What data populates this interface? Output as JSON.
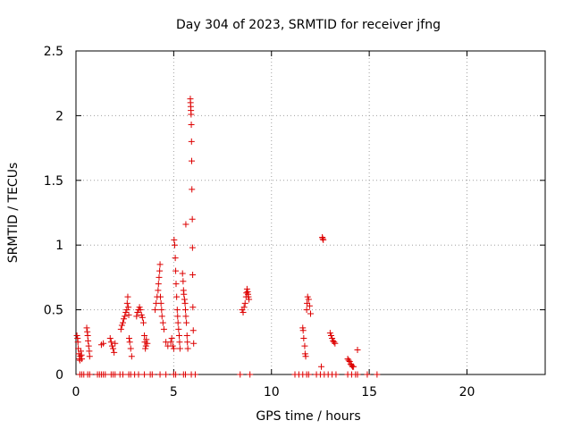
{
  "chart_data": {
    "type": "scatter",
    "title": "Day 304 of 2023, SRMTID for receiver jfng",
    "xlabel": "GPS time / hours",
    "ylabel": "SRMTID / TECUs",
    "xlim": [
      0,
      24
    ],
    "ylim": [
      0,
      2.5
    ],
    "xticks": [
      0,
      5,
      10,
      15,
      20
    ],
    "xtick_labels": [
      "0",
      "5",
      "10",
      "15",
      "20"
    ],
    "yticks": [
      0,
      0.5,
      1,
      1.5,
      2,
      2.5
    ],
    "ytick_labels": [
      "0",
      "0.5",
      "1",
      "1.5",
      "2",
      "2.5"
    ],
    "grid": true,
    "marker": "+",
    "color": "#dd0000",
    "series": [
      {
        "name": "SRMTID",
        "points": [
          [
            0.05,
            0.3
          ],
          [
            0.08,
            0.28
          ],
          [
            0.1,
            0.25
          ],
          [
            0.12,
            0.2
          ],
          [
            0.15,
            0.16
          ],
          [
            0.18,
            0.12
          ],
          [
            0.2,
            0.11
          ],
          [
            0.22,
            0.14
          ],
          [
            0.25,
            0.18
          ],
          [
            0.28,
            0.15
          ],
          [
            0.3,
            0.12
          ],
          [
            0.55,
            0.36
          ],
          [
            0.58,
            0.33
          ],
          [
            0.6,
            0.3
          ],
          [
            0.62,
            0.26
          ],
          [
            0.65,
            0.22
          ],
          [
            0.68,
            0.18
          ],
          [
            0.7,
            0.14
          ],
          [
            1.3,
            0.23
          ],
          [
            1.4,
            0.24
          ],
          [
            1.75,
            0.28
          ],
          [
            1.8,
            0.25
          ],
          [
            1.85,
            0.22
          ],
          [
            1.9,
            0.2
          ],
          [
            1.95,
            0.17
          ],
          [
            2.0,
            0.24
          ],
          [
            2.3,
            0.35
          ],
          [
            2.35,
            0.38
          ],
          [
            2.4,
            0.4
          ],
          [
            2.45,
            0.43
          ],
          [
            2.5,
            0.45
          ],
          [
            2.55,
            0.48
          ],
          [
            2.6,
            0.5
          ],
          [
            2.62,
            0.55
          ],
          [
            2.65,
            0.6
          ],
          [
            2.68,
            0.52
          ],
          [
            2.7,
            0.46
          ],
          [
            2.72,
            0.28
          ],
          [
            2.75,
            0.25
          ],
          [
            2.8,
            0.2
          ],
          [
            2.85,
            0.14
          ],
          [
            3.1,
            0.45
          ],
          [
            3.15,
            0.48
          ],
          [
            3.2,
            0.5
          ],
          [
            3.25,
            0.52
          ],
          [
            3.3,
            0.5
          ],
          [
            3.35,
            0.46
          ],
          [
            3.4,
            0.44
          ],
          [
            3.45,
            0.4
          ],
          [
            3.5,
            0.3
          ],
          [
            3.52,
            0.25
          ],
          [
            3.55,
            0.2
          ],
          [
            3.58,
            0.22
          ],
          [
            3.6,
            0.27
          ],
          [
            3.65,
            0.24
          ],
          [
            4.05,
            0.5
          ],
          [
            4.1,
            0.55
          ],
          [
            4.15,
            0.6
          ],
          [
            4.2,
            0.65
          ],
          [
            4.22,
            0.7
          ],
          [
            4.25,
            0.75
          ],
          [
            4.28,
            0.8
          ],
          [
            4.3,
            0.85
          ],
          [
            4.32,
            0.6
          ],
          [
            4.35,
            0.55
          ],
          [
            4.38,
            0.5
          ],
          [
            4.4,
            0.45
          ],
          [
            4.45,
            0.4
          ],
          [
            4.5,
            0.35
          ],
          [
            4.6,
            0.25
          ],
          [
            4.7,
            0.22
          ],
          [
            4.85,
            0.25
          ],
          [
            4.9,
            0.28
          ],
          [
            4.95,
            0.22
          ],
          [
            5.0,
            0.2
          ],
          [
            5.02,
            1.04
          ],
          [
            5.05,
            1.0
          ],
          [
            5.08,
            0.9
          ],
          [
            5.1,
            0.8
          ],
          [
            5.12,
            0.7
          ],
          [
            5.15,
            0.6
          ],
          [
            5.18,
            0.5
          ],
          [
            5.2,
            0.45
          ],
          [
            5.22,
            0.4
          ],
          [
            5.25,
            0.35
          ],
          [
            5.28,
            0.3
          ],
          [
            5.3,
            0.25
          ],
          [
            5.32,
            0.2
          ],
          [
            5.45,
            0.78
          ],
          [
            5.48,
            0.72
          ],
          [
            5.5,
            0.65
          ],
          [
            5.52,
            0.62
          ],
          [
            5.55,
            0.58
          ],
          [
            5.58,
            0.55
          ],
          [
            5.6,
            0.5
          ],
          [
            5.62,
            0.45
          ],
          [
            5.65,
            0.4
          ],
          [
            5.68,
            0.3
          ],
          [
            5.7,
            0.25
          ],
          [
            5.72,
            0.2
          ],
          [
            5.62,
            1.16
          ],
          [
            5.85,
            2.13
          ],
          [
            5.86,
            2.1
          ],
          [
            5.87,
            2.07
          ],
          [
            5.88,
            2.04
          ],
          [
            5.89,
            2.01
          ],
          [
            5.9,
            1.93
          ],
          [
            5.91,
            1.8
          ],
          [
            5.92,
            1.65
          ],
          [
            5.93,
            1.43
          ],
          [
            5.95,
            1.2
          ],
          [
            5.96,
            0.98
          ],
          [
            5.97,
            0.77
          ],
          [
            5.98,
            0.52
          ],
          [
            6.0,
            0.34
          ],
          [
            6.02,
            0.24
          ],
          [
            8.5,
            0.5
          ],
          [
            8.55,
            0.48
          ],
          [
            8.6,
            0.52
          ],
          [
            8.65,
            0.55
          ],
          [
            8.7,
            0.6
          ],
          [
            8.72,
            0.63
          ],
          [
            8.75,
            0.66
          ],
          [
            8.78,
            0.64
          ],
          [
            8.8,
            0.62
          ],
          [
            8.82,
            0.6
          ],
          [
            8.85,
            0.58
          ],
          [
            11.6,
            0.36
          ],
          [
            11.62,
            0.34
          ],
          [
            11.65,
            0.28
          ],
          [
            11.7,
            0.22
          ],
          [
            11.72,
            0.16
          ],
          [
            11.75,
            0.14
          ],
          [
            11.8,
            0.5
          ],
          [
            11.82,
            0.55
          ],
          [
            11.85,
            0.6
          ],
          [
            11.9,
            0.58
          ],
          [
            11.95,
            0.53
          ],
          [
            12.0,
            0.47
          ],
          [
            12.6,
            1.06
          ],
          [
            12.62,
            1.05
          ],
          [
            12.65,
            1.04
          ],
          [
            12.55,
            0.06
          ],
          [
            13.0,
            0.32
          ],
          [
            13.05,
            0.3
          ],
          [
            13.1,
            0.28
          ],
          [
            13.15,
            0.26
          ],
          [
            13.2,
            0.25
          ],
          [
            13.25,
            0.24
          ],
          [
            13.9,
            0.12
          ],
          [
            13.95,
            0.11
          ],
          [
            14.0,
            0.1
          ],
          [
            14.05,
            0.08
          ],
          [
            14.1,
            0.07
          ],
          [
            14.15,
            0.06
          ],
          [
            14.2,
            0.06
          ],
          [
            14.4,
            0.19
          ],
          [
            0.2,
            0.0
          ],
          [
            0.3,
            0.0
          ],
          [
            0.4,
            0.0
          ],
          [
            0.6,
            0.0
          ],
          [
            0.7,
            0.0
          ],
          [
            1.1,
            0.0
          ],
          [
            1.2,
            0.0
          ],
          [
            1.3,
            0.0
          ],
          [
            1.4,
            0.0
          ],
          [
            1.5,
            0.0
          ],
          [
            1.8,
            0.0
          ],
          [
            1.9,
            0.0
          ],
          [
            2.0,
            0.0
          ],
          [
            2.25,
            0.0
          ],
          [
            2.4,
            0.0
          ],
          [
            2.7,
            0.0
          ],
          [
            2.8,
            0.0
          ],
          [
            3.0,
            0.0
          ],
          [
            3.2,
            0.0
          ],
          [
            3.5,
            0.0
          ],
          [
            3.8,
            0.0
          ],
          [
            3.9,
            0.0
          ],
          [
            4.3,
            0.0
          ],
          [
            4.6,
            0.0
          ],
          [
            5.0,
            0.0
          ],
          [
            5.1,
            0.0
          ],
          [
            5.5,
            0.0
          ],
          [
            5.6,
            0.0
          ],
          [
            5.9,
            0.0
          ],
          [
            6.1,
            0.0
          ],
          [
            8.4,
            0.0
          ],
          [
            8.9,
            0.0
          ],
          [
            11.2,
            0.0
          ],
          [
            11.4,
            0.0
          ],
          [
            11.6,
            0.0
          ],
          [
            11.8,
            0.0
          ],
          [
            11.9,
            0.0
          ],
          [
            12.3,
            0.0
          ],
          [
            12.5,
            0.0
          ],
          [
            12.7,
            0.0
          ],
          [
            12.9,
            0.0
          ],
          [
            13.1,
            0.0
          ],
          [
            13.3,
            0.0
          ],
          [
            13.9,
            0.0
          ],
          [
            14.1,
            0.0
          ],
          [
            14.3,
            0.0
          ],
          [
            14.4,
            0.0
          ],
          [
            14.9,
            0.0
          ],
          [
            15.4,
            0.0
          ]
        ]
      }
    ]
  }
}
